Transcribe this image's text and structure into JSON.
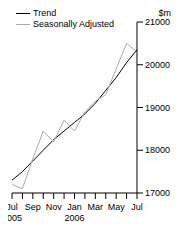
{
  "chart_data": {
    "type": "line",
    "ylabel": "$m",
    "categories": [
      "Jul 2005",
      null,
      "Sep",
      null,
      "Nov",
      null,
      "Jan 2006",
      null,
      "Mar",
      null,
      "May",
      null,
      "Jul"
    ],
    "series": [
      {
        "name": "Trend",
        "color": "#000000",
        "values": [
          17300,
          17500,
          17750,
          18000,
          18250,
          18450,
          18650,
          18850,
          19100,
          19400,
          19700,
          20050,
          20350
        ]
      },
      {
        "name": "Seasonally Adjusted",
        "color": "#aaaaaa",
        "values": [
          17200,
          17100,
          17800,
          18450,
          18200,
          18700,
          18450,
          18900,
          19150,
          19300,
          19900,
          20500,
          20300
        ]
      }
    ],
    "ylim": [
      17000,
      21000
    ],
    "yticks": [
      17000,
      18000,
      19000,
      20000,
      21000
    ],
    "grid": false,
    "legend": "upper left"
  }
}
